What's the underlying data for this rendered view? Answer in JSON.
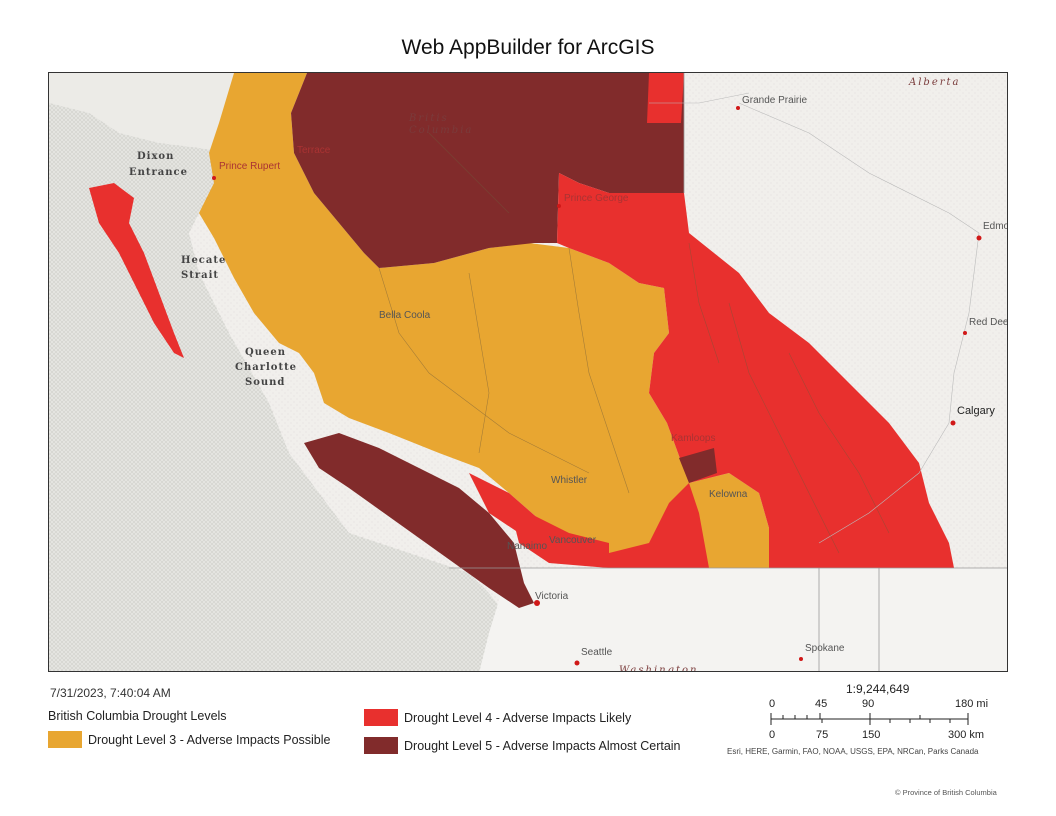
{
  "title": "Web AppBuilder for ArcGIS",
  "timestamp": "7/31/2023, 7:40:04 AM",
  "legend": {
    "title": "British Columbia Drought Levels",
    "items": [
      {
        "label": "Drought Level 3 - Adverse Impacts Possible",
        "color": "#e8a631"
      },
      {
        "label": "Drought Level 4 - Adverse Impacts Likely",
        "color": "#e8302e"
      },
      {
        "label": "Drought Level 5 - Adverse Impacts Almost Certain",
        "color": "#812b2b"
      }
    ]
  },
  "scale": {
    "ratio": "1:9,244,649",
    "miles_ticks": [
      "0",
      "45",
      "90",
      "180 mi"
    ],
    "km_ticks": [
      "0",
      "75",
      "150",
      "300 km"
    ]
  },
  "attribution": "Esri, HERE, Garmin, FAO, NOAA, USGS, EPA, NRCan, Parks Canada",
  "copyright": "© Province of British Columbia",
  "map": {
    "region_labels": [
      "Alberta",
      "British Columbia",
      "Washington"
    ],
    "water_labels": [
      "Dixon Entrance",
      "Hecate Strait",
      "Queen Charlotte Sound"
    ],
    "cities": [
      "Grande Prairie",
      "Edmon",
      "Red Deer",
      "Calgary",
      "Prince Rupert",
      "Terrace",
      "Prince George",
      "Bella Coola",
      "Kamloops",
      "Kelowna",
      "Whistler",
      "Nanaimo",
      "Vancouver",
      "Victoria",
      "Seattle",
      "Spokane"
    ]
  }
}
